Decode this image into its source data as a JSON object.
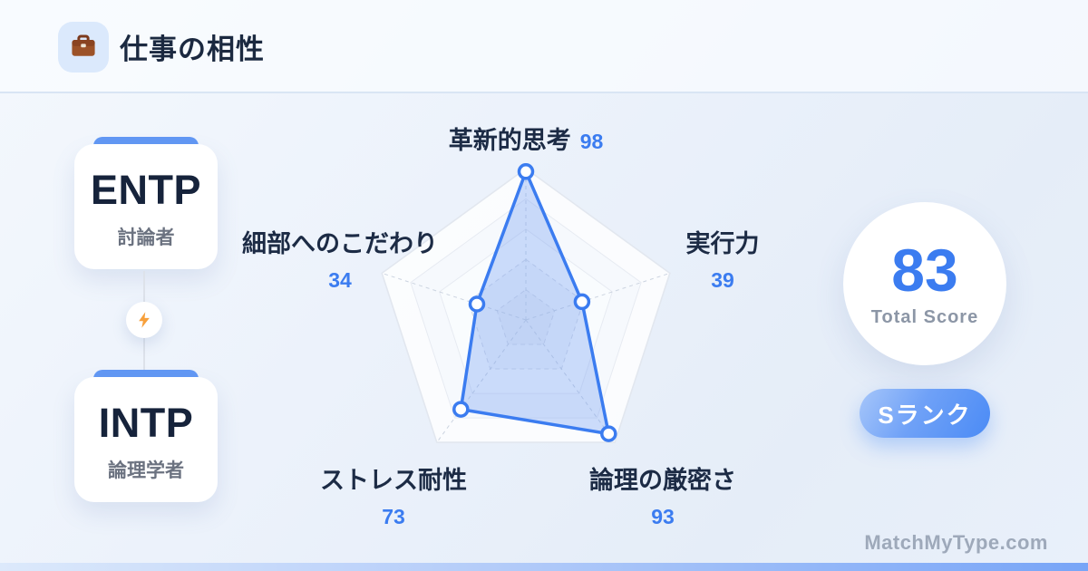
{
  "header": {
    "title": "仕事の相性"
  },
  "pair": {
    "type_a": {
      "code": "ENTP",
      "name": "討論者"
    },
    "type_b": {
      "code": "INTP",
      "name": "論理学者"
    }
  },
  "chart_data": {
    "type": "radar",
    "title": "仕事の相性",
    "categories": [
      "革新的思考",
      "実行力",
      "論理の厳密さ",
      "ストレス耐性",
      "細部へのこだわり"
    ],
    "values": [
      98,
      39,
      93,
      73,
      34
    ],
    "max": 100,
    "grid_levels": [
      20,
      40,
      60,
      80,
      100
    ],
    "grid": "pentagon rings, dashed spokes",
    "legend_position": "none"
  },
  "score": {
    "value": "83",
    "label": "Total Score",
    "rank": "Sランク"
  },
  "footer": {
    "brand": "MatchMyType.com"
  },
  "colors": {
    "accent_blue": "#3b7cf0",
    "polygon_fill": "rgba(104,150,242,0.32)",
    "card_bar_blue": "#6298f4",
    "badge_gradient": [
      "#a6c6fa",
      "#4b8bf5"
    ],
    "lightning_orange": "#f7a03c",
    "briefcase_brown": "#9c5228",
    "title_dark": "#1b2940",
    "muted_gray": "#8c96a6"
  }
}
